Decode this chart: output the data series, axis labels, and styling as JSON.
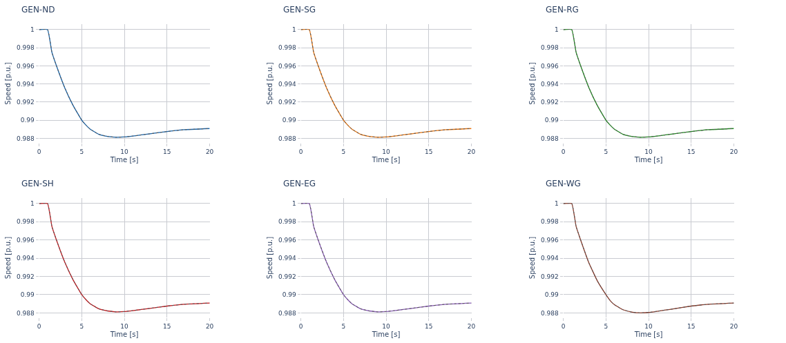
{
  "chart_data": [
    {
      "type": "line",
      "title": "GEN-ND",
      "xlabel": "Time [s]",
      "ylabel": "Speed [p.u.]",
      "xlim": [
        0,
        20
      ],
      "xticks": [
        0,
        5,
        10,
        15,
        20
      ],
      "ylim": [
        0.9875,
        1.0006
      ],
      "yticks": [
        0.988,
        0.99,
        0.992,
        0.994,
        0.996,
        0.998,
        1
      ],
      "grid": true,
      "x": [
        0,
        1,
        1.5,
        2,
        3,
        4,
        5,
        5.5,
        6,
        7,
        8,
        9,
        10,
        11,
        12,
        13,
        15,
        17,
        20
      ],
      "series": [
        {
          "color": "#1764ab",
          "line_style": "solid",
          "values": [
            1,
            1,
            0.9975,
            0.9961,
            0.9936,
            0.9916,
            0.99,
            0.98945,
            0.989,
            0.98845,
            0.98822,
            0.98812,
            0.98815,
            0.98825,
            0.98838,
            0.9885,
            0.98875,
            0.98895,
            0.98908
          ]
        },
        {
          "color": "#555555",
          "line_style": "dotted",
          "values": [
            1,
            1,
            0.9975,
            0.9961,
            0.9936,
            0.9916,
            0.99,
            0.98945,
            0.989,
            0.98845,
            0.98822,
            0.98812,
            0.98815,
            0.98825,
            0.98838,
            0.9885,
            0.98875,
            0.98895,
            0.98908
          ]
        }
      ]
    },
    {
      "type": "line",
      "title": "GEN-SG",
      "xlabel": "Time [s]",
      "ylabel": "Speed [p.u.]",
      "xlim": [
        0,
        20
      ],
      "xticks": [
        0,
        5,
        10,
        15,
        20
      ],
      "ylim": [
        0.9875,
        1.0006
      ],
      "yticks": [
        0.988,
        0.99,
        0.992,
        0.994,
        0.996,
        0.998,
        1
      ],
      "grid": true,
      "x": [
        0,
        1,
        1.5,
        2,
        3,
        4,
        5,
        5.5,
        6,
        7,
        8,
        9,
        10,
        11,
        12,
        13,
        15,
        17,
        20
      ],
      "series": [
        {
          "color": "#e8730c",
          "line_style": "solid",
          "values": [
            1,
            1,
            0.9975,
            0.9961,
            0.9936,
            0.9916,
            0.99,
            0.98945,
            0.989,
            0.98845,
            0.98822,
            0.98812,
            0.98815,
            0.98825,
            0.98838,
            0.9885,
            0.98875,
            0.98895,
            0.98908
          ]
        },
        {
          "color": "#555555",
          "line_style": "dotted",
          "values": [
            1,
            1,
            0.9975,
            0.9961,
            0.9936,
            0.9916,
            0.99,
            0.98945,
            0.989,
            0.98845,
            0.98822,
            0.98812,
            0.98815,
            0.98825,
            0.98838,
            0.9885,
            0.98875,
            0.98895,
            0.98908
          ]
        }
      ]
    },
    {
      "type": "line",
      "title": "GEN-RG",
      "xlabel": "Time [s]",
      "ylabel": "Speed [p.u.]",
      "xlim": [
        0,
        20
      ],
      "xticks": [
        0,
        5,
        10,
        15,
        20
      ],
      "ylim": [
        0.9875,
        1.0006
      ],
      "yticks": [
        0.988,
        0.99,
        0.992,
        0.994,
        0.996,
        0.998,
        1
      ],
      "grid": true,
      "x": [
        0,
        1,
        1.5,
        2,
        3,
        4,
        5,
        5.5,
        6,
        7,
        8,
        9,
        10,
        11,
        12,
        13,
        15,
        17,
        20
      ],
      "series": [
        {
          "color": "#1e8a1e",
          "line_style": "solid",
          "values": [
            1,
            1,
            0.9975,
            0.9961,
            0.9936,
            0.9916,
            0.99,
            0.98945,
            0.989,
            0.98845,
            0.98822,
            0.98812,
            0.98815,
            0.98825,
            0.98838,
            0.9885,
            0.98875,
            0.98895,
            0.98908
          ]
        },
        {
          "color": "#555555",
          "line_style": "dotted",
          "values": [
            1,
            1,
            0.9975,
            0.9961,
            0.9936,
            0.9916,
            0.99,
            0.98945,
            0.989,
            0.98845,
            0.98822,
            0.98812,
            0.98815,
            0.98825,
            0.98838,
            0.9885,
            0.98875,
            0.98895,
            0.98908
          ]
        }
      ]
    },
    {
      "type": "line",
      "title": "GEN-SH",
      "xlabel": "Time [s]",
      "ylabel": "Speed [p.u.]",
      "xlim": [
        0,
        20
      ],
      "xticks": [
        0,
        5,
        10,
        15,
        20
      ],
      "ylim": [
        0.9875,
        1.0006
      ],
      "yticks": [
        0.988,
        0.99,
        0.992,
        0.994,
        0.996,
        0.998,
        1
      ],
      "grid": true,
      "x": [
        0,
        1,
        1.5,
        2,
        3,
        4,
        5,
        5.5,
        6,
        7,
        8,
        9,
        10,
        11,
        12,
        13,
        15,
        17,
        20
      ],
      "series": [
        {
          "color": "#c4161c",
          "line_style": "solid",
          "values": [
            1,
            1,
            0.9975,
            0.9961,
            0.9936,
            0.9916,
            0.99,
            0.98945,
            0.989,
            0.98845,
            0.98822,
            0.98812,
            0.98815,
            0.98825,
            0.98838,
            0.9885,
            0.98875,
            0.98895,
            0.98908
          ]
        },
        {
          "color": "#555555",
          "line_style": "dotted",
          "values": [
            1,
            1,
            0.9975,
            0.9961,
            0.9936,
            0.9916,
            0.99,
            0.98945,
            0.989,
            0.98845,
            0.98822,
            0.98812,
            0.98815,
            0.98825,
            0.98838,
            0.9885,
            0.98875,
            0.98895,
            0.98908
          ]
        }
      ]
    },
    {
      "type": "line",
      "title": "GEN-EG",
      "xlabel": "Time [s]",
      "ylabel": "Speed [p.u.]",
      "xlim": [
        0,
        20
      ],
      "xticks": [
        0,
        5,
        10,
        15,
        20
      ],
      "ylim": [
        0.9875,
        1.0006
      ],
      "yticks": [
        0.988,
        0.99,
        0.992,
        0.994,
        0.996,
        0.998,
        1
      ],
      "grid": true,
      "x": [
        0,
        1,
        1.5,
        2,
        3,
        4,
        5,
        5.5,
        6,
        7,
        8,
        9,
        10,
        11,
        12,
        13,
        15,
        17,
        20
      ],
      "series": [
        {
          "color": "#8a5cb8",
          "line_style": "solid",
          "values": [
            1,
            1,
            0.9975,
            0.9961,
            0.9936,
            0.9916,
            0.99,
            0.98945,
            0.989,
            0.98845,
            0.98822,
            0.98812,
            0.98815,
            0.98825,
            0.98838,
            0.9885,
            0.98875,
            0.98895,
            0.98908
          ]
        },
        {
          "color": "#555555",
          "line_style": "dotted",
          "values": [
            1,
            1,
            0.9975,
            0.9961,
            0.9936,
            0.9916,
            0.99,
            0.98945,
            0.989,
            0.98845,
            0.98822,
            0.98812,
            0.98815,
            0.98825,
            0.98838,
            0.9885,
            0.98875,
            0.98895,
            0.98908
          ]
        }
      ]
    },
    {
      "type": "line",
      "title": "GEN-WG",
      "xlabel": "Time [s]",
      "ylabel": "Speed [p.u.]",
      "xlim": [
        0,
        20
      ],
      "xticks": [
        0,
        5,
        10,
        15,
        20
      ],
      "ylim": [
        0.9875,
        1.0006
      ],
      "yticks": [
        0.988,
        0.99,
        0.992,
        0.994,
        0.996,
        0.998,
        1
      ],
      "grid": true,
      "x": [
        0,
        1,
        1.5,
        2,
        3,
        4,
        5,
        5.5,
        6,
        7,
        8,
        9,
        10,
        11,
        12,
        13,
        15,
        17,
        20
      ],
      "series": [
        {
          "color": "#8b3a2a",
          "line_style": "solid",
          "values": [
            1,
            1,
            0.9975,
            0.9961,
            0.9935,
            0.9915,
            0.99,
            0.98935,
            0.9889,
            0.98835,
            0.9881,
            0.988,
            0.98805,
            0.98818,
            0.98832,
            0.98845,
            0.98875,
            0.98895,
            0.98908
          ]
        },
        {
          "color": "#555555",
          "line_style": "dotted",
          "values": [
            1,
            1,
            0.9975,
            0.9961,
            0.9935,
            0.9915,
            0.99,
            0.98935,
            0.9889,
            0.98835,
            0.9881,
            0.988,
            0.98805,
            0.98818,
            0.98832,
            0.98845,
            0.98875,
            0.98895,
            0.98908
          ]
        }
      ]
    }
  ]
}
